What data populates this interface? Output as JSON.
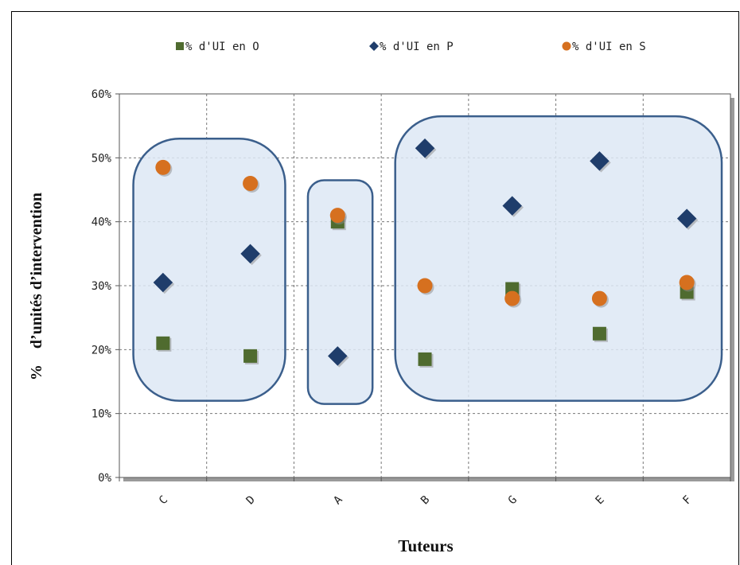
{
  "chart_data": {
    "type": "scatter",
    "categories": [
      "C",
      "D",
      "A",
      "B",
      "G",
      "E",
      "F"
    ],
    "series": [
      {
        "name": "% d'UI en O",
        "marker": "square",
        "color": "#4f6b2f",
        "values": [
          21,
          19,
          40,
          18.5,
          29.5,
          22.5,
          29
        ]
      },
      {
        "name": "% d'UI en P",
        "marker": "diamond",
        "color": "#1f3d6b",
        "values": [
          30.5,
          35,
          19,
          51.5,
          42.5,
          49.5,
          40.5
        ]
      },
      {
        "name": "% d'UI en S",
        "marker": "circle",
        "color": "#d6701f",
        "values": [
          48.5,
          46,
          41,
          30,
          28,
          28,
          30.5
        ]
      }
    ],
    "ylim": [
      0,
      60
    ],
    "yticks": [
      "0%",
      "10%",
      "20%",
      "30%",
      "40%",
      "50%",
      "60%"
    ],
    "xlabel": "Tuteurs",
    "ylabel": "%    d’unités d’intervention",
    "grid": true,
    "legend": "top",
    "groups": [
      {
        "from": "C",
        "to": "D",
        "range": [
          12,
          53
        ]
      },
      {
        "from": "A",
        "to": "A",
        "range": [
          11.5,
          46.5
        ]
      },
      {
        "from": "B",
        "to": "F",
        "range": [
          12,
          56.5
        ]
      }
    ],
    "group_fill": "#dde8f4",
    "group_stroke": "#3b5f8c"
  }
}
